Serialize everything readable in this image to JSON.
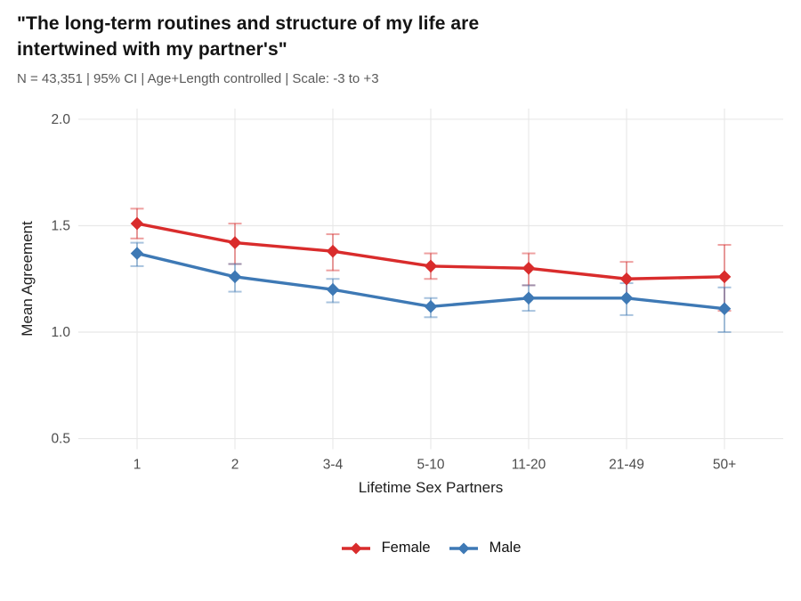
{
  "header": {
    "title_lines": [
      "\"The long-term routines and structure of my life are",
      "intertwined with my partner's\""
    ],
    "subtitle": "N = 43,351 | 95% CI | Age+Length controlled | Scale: -3 to +3"
  },
  "chart_data": {
    "type": "line",
    "title": "\"The long-term routines and structure of my life are intertwined with my partner's\"",
    "subtitle": "N = 43,351 | 95% CI | Age+Length controlled | Scale: -3 to +3",
    "categories": [
      "1",
      "2",
      "3-4",
      "5-10",
      "11-20",
      "21-49",
      "50+"
    ],
    "xlabel": "Lifetime Sex Partners",
    "ylabel": "Mean Agreement",
    "ylim": [
      0.45,
      2.05
    ],
    "yticks": [
      0.5,
      1.0,
      1.5,
      2.0
    ],
    "ytick_labels": [
      "0.5",
      "1.0",
      "1.5",
      "2.0"
    ],
    "grid": true,
    "grid_minor": false,
    "legend_position": "bottom",
    "error_bars": "95% CI",
    "point_shape": "diamond",
    "colors": {
      "grid": "#e8e8e8",
      "tick_text": "#4d4d4d",
      "axis_title_text": "#1f1f1f",
      "title_text": "#141414",
      "subtitle_text": "#5a5a5a",
      "ci_alpha": 0.45
    },
    "series": [
      {
        "name": "Female",
        "color": "#d92c2c",
        "values": [
          1.51,
          1.42,
          1.38,
          1.31,
          1.3,
          1.25,
          1.26
        ],
        "ci_low": [
          1.44,
          1.32,
          1.29,
          1.25,
          1.22,
          1.16,
          1.1
        ],
        "ci_high": [
          1.58,
          1.51,
          1.46,
          1.37,
          1.37,
          1.33,
          1.41
        ]
      },
      {
        "name": "Male",
        "color": "#3e79b5",
        "values": [
          1.37,
          1.26,
          1.2,
          1.12,
          1.16,
          1.16,
          1.11
        ],
        "ci_low": [
          1.31,
          1.19,
          1.14,
          1.07,
          1.1,
          1.08,
          1.0
        ],
        "ci_high": [
          1.42,
          1.32,
          1.25,
          1.16,
          1.22,
          1.23,
          1.21
        ]
      }
    ]
  }
}
